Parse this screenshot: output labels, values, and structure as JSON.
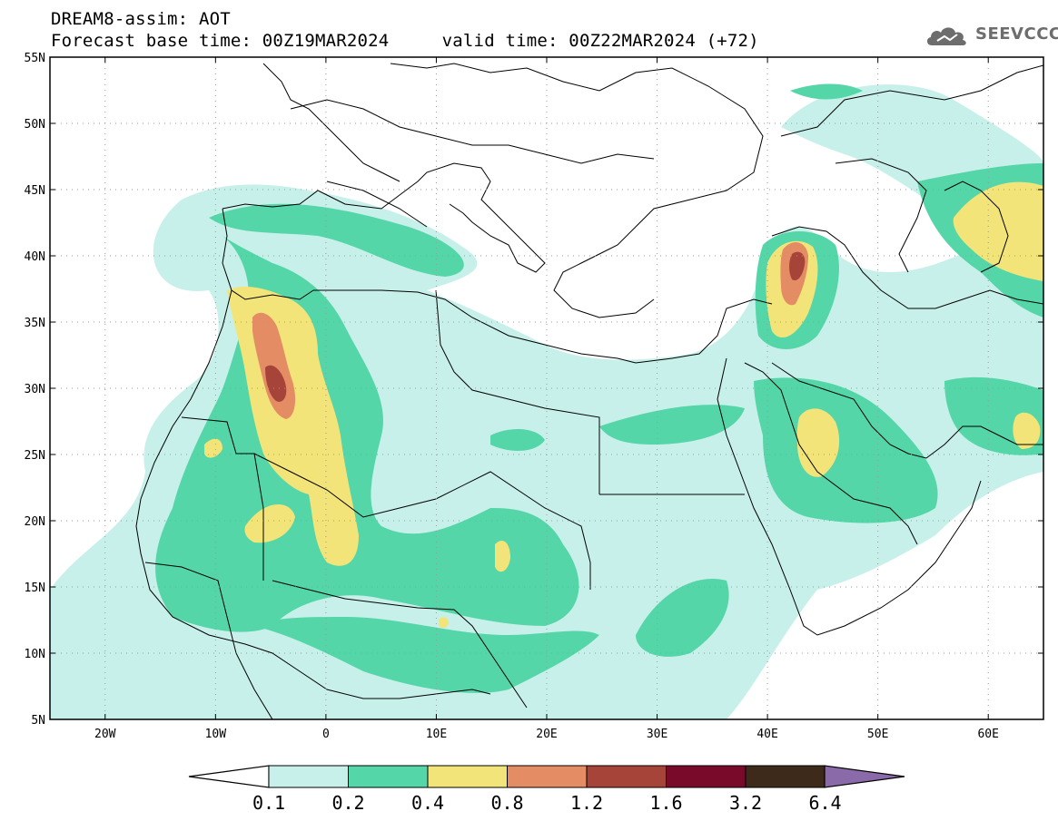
{
  "header": {
    "title_line1": "DREAM8-assim: AOT",
    "title_line2": "Forecast base time: 00Z19MAR2024     valid time: 00Z22MAR2024 (+72)"
  },
  "logo": {
    "text": "SEEVCCC",
    "icon": "cloud-icon"
  },
  "map": {
    "lon_range": [
      -25,
      65
    ],
    "lat_range": [
      5,
      55
    ],
    "lat_ticks": [
      {
        "value": 55,
        "label": "55N"
      },
      {
        "value": 50,
        "label": "50N"
      },
      {
        "value": 45,
        "label": "45N"
      },
      {
        "value": 40,
        "label": "40N"
      },
      {
        "value": 35,
        "label": "35N"
      },
      {
        "value": 30,
        "label": "30N"
      },
      {
        "value": 25,
        "label": "25N"
      },
      {
        "value": 20,
        "label": "20N"
      },
      {
        "value": 15,
        "label": "15N"
      },
      {
        "value": 10,
        "label": "10N"
      },
      {
        "value": 5,
        "label": "5N"
      }
    ],
    "lon_ticks": [
      {
        "value": -20,
        "label": "20W"
      },
      {
        "value": -10,
        "label": "10W"
      },
      {
        "value": 0,
        "label": "0"
      },
      {
        "value": 10,
        "label": "10E"
      },
      {
        "value": 20,
        "label": "20E"
      },
      {
        "value": 30,
        "label": "30E"
      },
      {
        "value": 40,
        "label": "40E"
      },
      {
        "value": 50,
        "label": "50E"
      },
      {
        "value": 60,
        "label": "60E"
      }
    ],
    "grid": "dotted"
  },
  "colorbar": {
    "labels": [
      "0.1",
      "0.2",
      "0.4",
      "0.8",
      "1.2",
      "1.6",
      "3.2",
      "6.4"
    ],
    "colors": [
      "#c8f0ea",
      "#55d6a8",
      "#f3e47a",
      "#e48d65",
      "#a6443a",
      "#7a0a2a",
      "#3d2a1a",
      "#8a6aa8"
    ]
  }
}
